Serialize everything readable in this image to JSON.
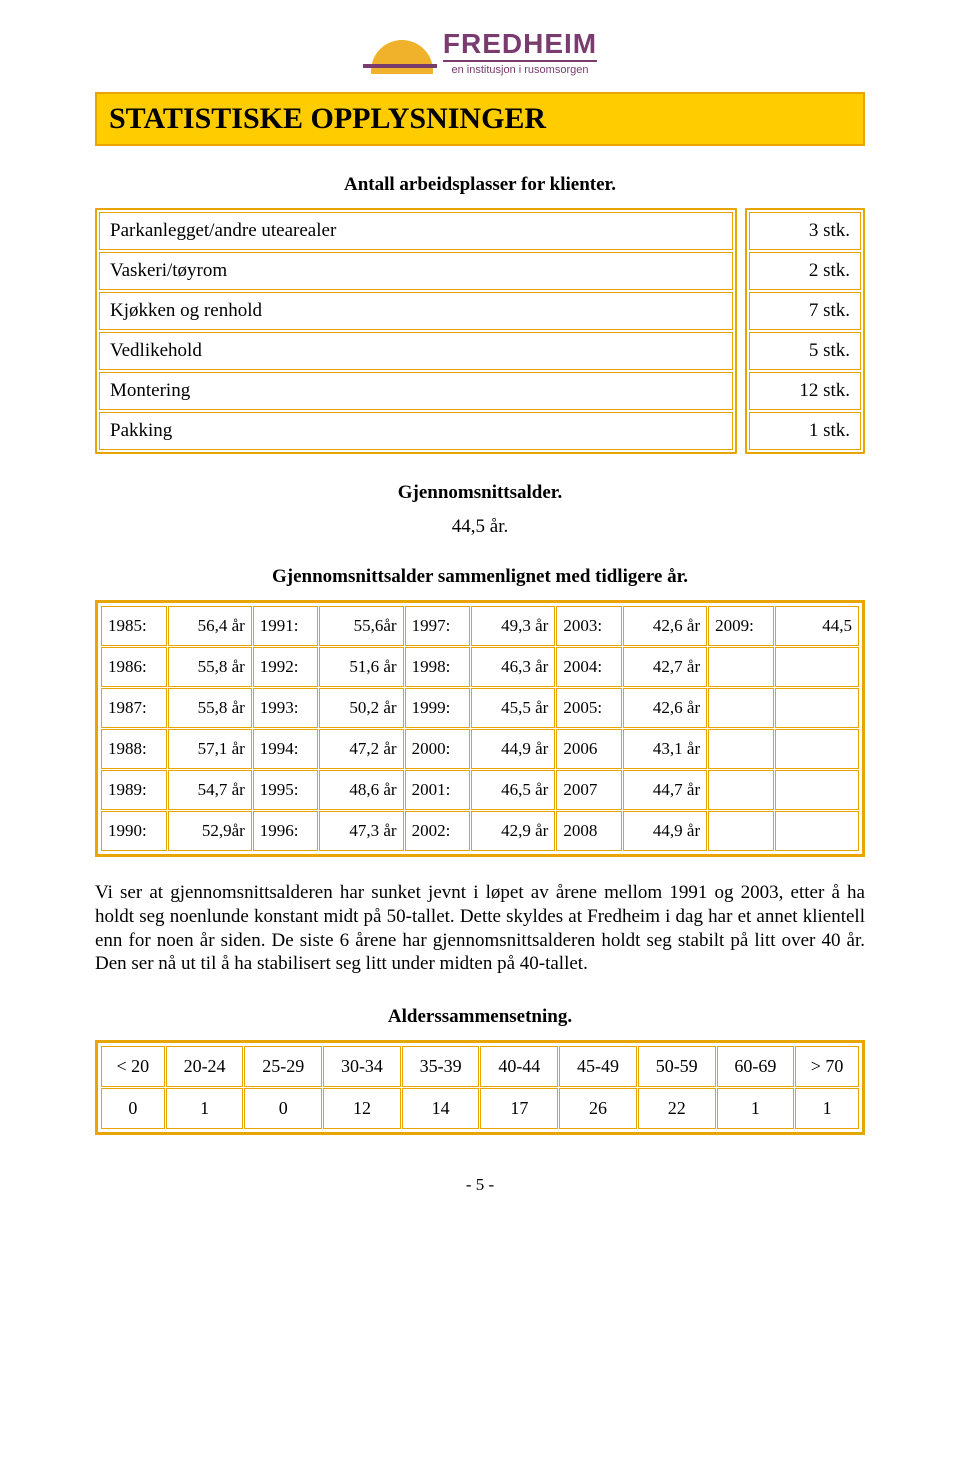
{
  "colors": {
    "accent_border": "#e8a400",
    "title_bg": "#ffcc00",
    "logo_sun": "#efb22a",
    "logo_purple": "#7a3b6e",
    "text": "#000000",
    "background": "#ffffff"
  },
  "logo": {
    "name": "FREDHEIM",
    "tagline": "en institusjon i rusomsorgen"
  },
  "title": "STATISTISKE OPPLYSNINGER",
  "workplaces": {
    "heading": "Antall arbeidsplasser for klienter.",
    "rows": [
      {
        "label": "Parkanlegget/andre utearealer",
        "value": "3 stk."
      },
      {
        "label": "Vaskeri/tøyrom",
        "value": "2 stk."
      },
      {
        "label": "Kjøkken og renhold",
        "value": "7 stk."
      },
      {
        "label": "Vedlikehold",
        "value": "5 stk."
      },
      {
        "label": "Montering",
        "value": "12 stk."
      },
      {
        "label": "Pakking",
        "value": "1 stk."
      }
    ]
  },
  "avg_age": {
    "heading": "Gjennomsnittsalder.",
    "value": "44,5 år."
  },
  "year_compare": {
    "heading": "Gjennomsnittsalder sammenlignet med tidligere år.",
    "font_size_pt": 13,
    "rows": [
      [
        {
          "y": "1985:",
          "v": "56,4 år"
        },
        {
          "y": "1991:",
          "v": "55,6år"
        },
        {
          "y": "1997:",
          "v": "49,3 år"
        },
        {
          "y": "2003:",
          "v": "42,6 år"
        },
        {
          "y": "2009:",
          "v": "44,5"
        }
      ],
      [
        {
          "y": "1986:",
          "v": "55,8 år"
        },
        {
          "y": "1992:",
          "v": "51,6 år"
        },
        {
          "y": "1998:",
          "v": "46,3 år"
        },
        {
          "y": "2004:",
          "v": "42,7 år"
        },
        {
          "y": "",
          "v": ""
        }
      ],
      [
        {
          "y": "1987:",
          "v": "55,8 år"
        },
        {
          "y": "1993:",
          "v": "50,2 år"
        },
        {
          "y": "1999:",
          "v": "45,5 år"
        },
        {
          "y": "2005:",
          "v": "42,6 år"
        },
        {
          "y": "",
          "v": ""
        }
      ],
      [
        {
          "y": "1988:",
          "v": "57,1 år"
        },
        {
          "y": "1994:",
          "v": "47,2 år"
        },
        {
          "y": "2000:",
          "v": "44,9 år"
        },
        {
          "y": "2006",
          "v": "43,1 år"
        },
        {
          "y": "",
          "v": ""
        }
      ],
      [
        {
          "y": "1989:",
          "v": "54,7 år"
        },
        {
          "y": "1995:",
          "v": "48,6 år"
        },
        {
          "y": "2001:",
          "v": "46,5 år"
        },
        {
          "y": "2007",
          "v": "44,7 år"
        },
        {
          "y": "",
          "v": ""
        }
      ],
      [
        {
          "y": "1990:",
          "v": "52,9år"
        },
        {
          "y": "1996:",
          "v": "47,3 år"
        },
        {
          "y": "2002:",
          "v": "42,9 år"
        },
        {
          "y": "2008",
          "v": "44,9 år"
        },
        {
          "y": "",
          "v": ""
        }
      ]
    ]
  },
  "body_paragraph": "Vi ser at gjennomsnittsalderen har sunket jevnt i løpet av årene mellom 1991 og 2003, etter å ha holdt seg noenlunde konstant midt på 50-tallet. Dette skyldes at Fredheim i dag har et annet klientell enn for noen år siden. De siste 6 årene har gjennomsnittsalderen holdt seg stabilt på litt over 40 år. Den ser nå ut til å ha stabilisert seg litt under midten på 40-tallet.",
  "age_dist": {
    "heading": "Alderssammensetning.",
    "columns": [
      "<  20",
      "20-24",
      "25-29",
      "30-34",
      "35-39",
      "40-44",
      "45-49",
      "50-59",
      "60-69",
      ">  70"
    ],
    "values": [
      "0",
      "1",
      "0",
      "12",
      "14",
      "17",
      "26",
      "22",
      "1",
      "1"
    ]
  },
  "page_number": "- 5 -"
}
